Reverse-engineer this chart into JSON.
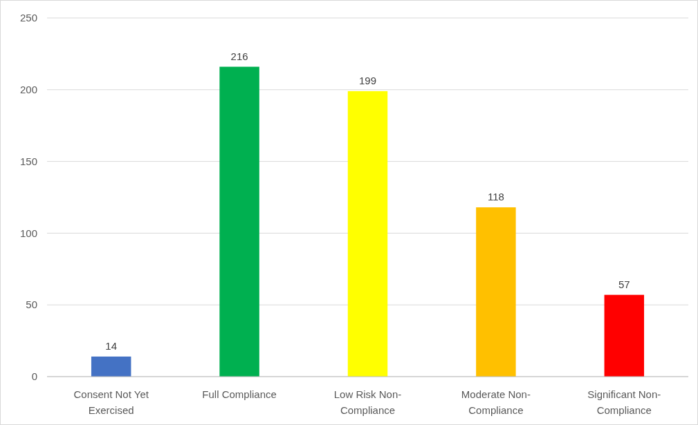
{
  "chart_data": {
    "type": "bar",
    "categories": [
      "Consent Not Yet Exercised",
      "Full Compliance",
      "Low Risk Non-Compliance",
      "Moderate Non-Compliance",
      "Significant Non-Compliance"
    ],
    "values": [
      14,
      216,
      199,
      118,
      57
    ],
    "colors": [
      "#4472c4",
      "#00b050",
      "#ffff00",
      "#ffc000",
      "#ff0000"
    ],
    "ylim": [
      0,
      250
    ],
    "yticks": [
      0,
      50,
      100,
      150,
      200,
      250
    ],
    "grid": "y",
    "data_labels": true
  }
}
